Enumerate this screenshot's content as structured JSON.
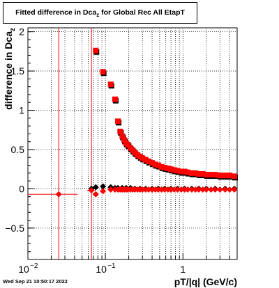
{
  "title": {
    "prefix": "Fitted difference in Dca",
    "subscript": "z",
    "suffix": "  for Global Rec All EtapT"
  },
  "timestamp": "Wed Sep 21 10:50:17 2022",
  "colors": {
    "red_series": "#ff0000",
    "black_series": "#000000",
    "grid": "#000000",
    "vertical_lines": "#ff0000"
  },
  "chart_data": {
    "type": "scatter",
    "title": "Fitted difference in Dca_z  for Global Rec All EtapT",
    "xlabel": "pT/|q| (GeV/c)",
    "ylabel": "difference in Dca_z",
    "x_scale": "log",
    "xlim": [
      0.01,
      5.0
    ],
    "ylim": [
      -0.9,
      2.05
    ],
    "grid": true,
    "x_ticks": [
      {
        "label": "10",
        "exp": "−2"
      },
      {
        "label": "10",
        "exp": "−1"
      },
      {
        "label": "1",
        "exp": ""
      }
    ],
    "y_ticks": [
      "−0.5",
      "0",
      "0.5",
      "1",
      "1.5",
      "2"
    ],
    "vertical_lines_x": [
      0.025,
      0.066
    ],
    "series": [
      {
        "marker": "square",
        "color": "#ff0000",
        "points": [
          [
            0.075,
            1.76
          ],
          [
            0.093,
            1.49
          ],
          [
            0.117,
            1.33
          ],
          [
            0.133,
            1.14
          ],
          [
            0.145,
            0.86
          ],
          [
            0.155,
            0.73
          ],
          [
            0.165,
            0.67
          ],
          [
            0.175,
            0.62
          ],
          [
            0.185,
            0.58
          ],
          [
            0.195,
            0.56
          ],
          [
            0.21,
            0.52
          ],
          [
            0.225,
            0.49
          ],
          [
            0.24,
            0.46
          ],
          [
            0.26,
            0.43
          ],
          [
            0.28,
            0.41
          ],
          [
            0.3,
            0.39
          ],
          [
            0.33,
            0.37
          ],
          [
            0.36,
            0.35
          ],
          [
            0.4,
            0.33
          ],
          [
            0.44,
            0.31
          ],
          [
            0.48,
            0.3
          ],
          [
            0.53,
            0.28
          ],
          [
            0.58,
            0.27
          ],
          [
            0.64,
            0.26
          ],
          [
            0.7,
            0.25
          ],
          [
            0.77,
            0.24
          ],
          [
            0.85,
            0.23
          ],
          [
            0.95,
            0.22
          ],
          [
            1.05,
            0.22
          ],
          [
            1.15,
            0.21
          ],
          [
            1.3,
            0.2
          ],
          [
            1.45,
            0.2
          ],
          [
            1.6,
            0.19
          ],
          [
            1.8,
            0.19
          ],
          [
            2.0,
            0.18
          ],
          [
            2.3,
            0.18
          ],
          [
            2.6,
            0.18
          ],
          [
            3.0,
            0.17
          ],
          [
            3.5,
            0.17
          ],
          [
            4.0,
            0.17
          ],
          [
            4.6,
            0.16
          ]
        ]
      },
      {
        "marker": "diamond",
        "color": "#000000",
        "points": [
          [
            0.066,
            0.0
          ],
          [
            0.075,
            0.02
          ],
          [
            0.093,
            0.03
          ],
          [
            0.117,
            0.02
          ],
          [
            0.133,
            0.01
          ],
          [
            0.145,
            0.01
          ],
          [
            0.165,
            0.01
          ],
          [
            0.185,
            0.01
          ],
          [
            0.21,
            0.01
          ],
          [
            0.24,
            0.0
          ],
          [
            0.28,
            0.0
          ],
          [
            0.33,
            0.0
          ],
          [
            0.4,
            0.0
          ],
          [
            0.48,
            0.0
          ],
          [
            0.58,
            0.0
          ],
          [
            0.7,
            0.0
          ],
          [
            0.85,
            0.0
          ],
          [
            1.05,
            0.0
          ],
          [
            1.3,
            0.0
          ],
          [
            1.6,
            0.0
          ],
          [
            2.0,
            0.0
          ],
          [
            2.6,
            0.0
          ],
          [
            3.5,
            0.0
          ],
          [
            4.6,
            0.0
          ]
        ]
      },
      {
        "marker": "diamond",
        "color": "#ff0000",
        "points": [
          [
            0.025,
            -0.07
          ],
          [
            0.066,
            -0.02
          ],
          [
            0.075,
            -0.07
          ],
          [
            0.093,
            -0.03
          ],
          [
            0.117,
            -0.01
          ],
          [
            0.133,
            -0.01
          ],
          [
            0.145,
            -0.01
          ],
          [
            0.155,
            -0.01
          ],
          [
            0.165,
            -0.01
          ],
          [
            0.175,
            -0.01
          ],
          [
            0.185,
            -0.01
          ],
          [
            0.195,
            -0.01
          ],
          [
            0.21,
            -0.01
          ],
          [
            0.225,
            -0.01
          ],
          [
            0.24,
            -0.01
          ],
          [
            0.26,
            -0.01
          ],
          [
            0.28,
            -0.01
          ],
          [
            0.3,
            -0.01
          ],
          [
            0.33,
            -0.01
          ],
          [
            0.36,
            -0.01
          ],
          [
            0.4,
            -0.01
          ],
          [
            0.44,
            -0.01
          ],
          [
            0.48,
            -0.01
          ],
          [
            0.53,
            -0.01
          ],
          [
            0.58,
            -0.01
          ],
          [
            0.64,
            -0.01
          ],
          [
            0.7,
            -0.01
          ],
          [
            0.77,
            -0.01
          ],
          [
            0.85,
            -0.01
          ],
          [
            0.95,
            -0.01
          ],
          [
            1.05,
            -0.01
          ],
          [
            1.15,
            -0.01
          ],
          [
            1.3,
            -0.01
          ],
          [
            1.45,
            -0.01
          ],
          [
            1.6,
            -0.01
          ],
          [
            1.8,
            -0.01
          ],
          [
            2.0,
            -0.01
          ],
          [
            2.3,
            -0.01
          ],
          [
            2.6,
            -0.01
          ],
          [
            3.0,
            -0.01
          ],
          [
            3.5,
            -0.01
          ],
          [
            4.0,
            -0.01
          ],
          [
            4.6,
            -0.01
          ]
        ]
      }
    ],
    "error_bars_x": [
      {
        "y": -0.07,
        "x_lo": 0.01,
        "x_hi": 0.044
      },
      {
        "y": -0.02,
        "x_lo": 0.058,
        "x_hi": 0.075
      }
    ]
  }
}
